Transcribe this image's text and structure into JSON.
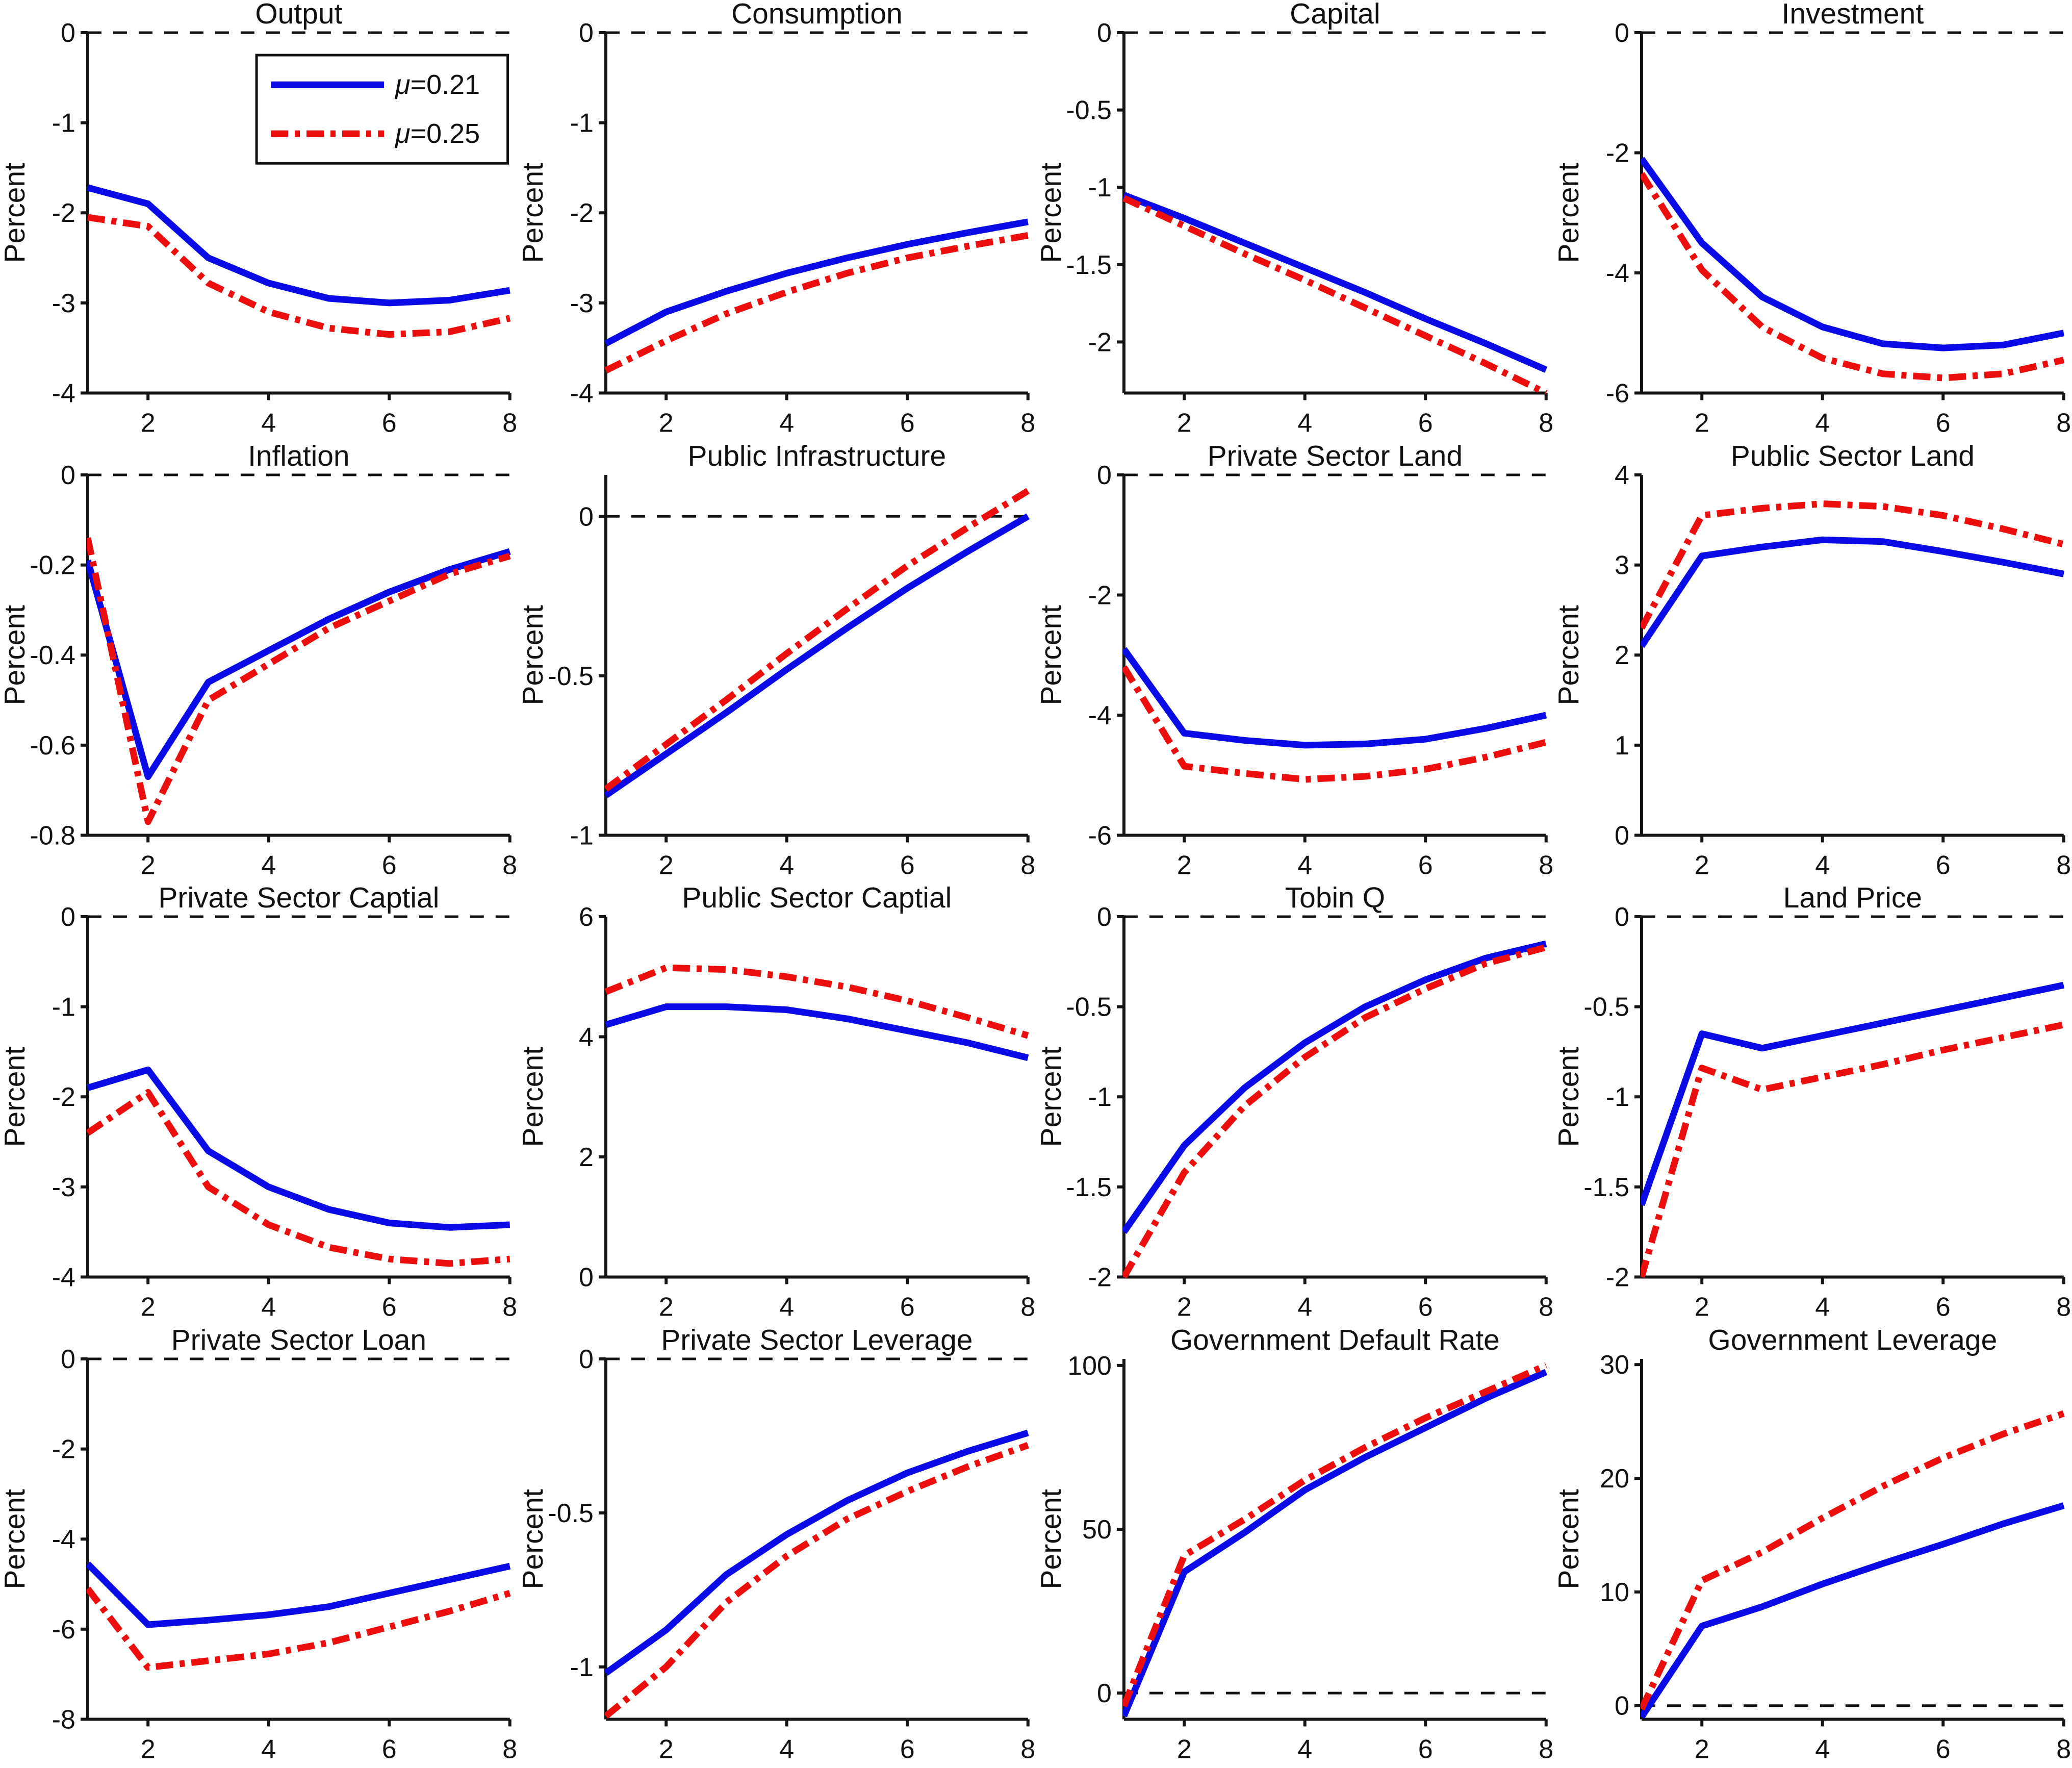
{
  "figure": {
    "ylabel": "Percent",
    "xticks": [
      2,
      4,
      6,
      8
    ],
    "x_range": [
      1,
      8
    ],
    "colors": {
      "series1": "#0b0be8",
      "series2": "#ec0d0d",
      "axis": "#151515",
      "zero_line": "#111111",
      "background": "#ffffff"
    },
    "legend": {
      "entries": [
        {
          "label": "μ=0.21",
          "color": "#0b0be8",
          "style": "solid"
        },
        {
          "label": "μ=0.25",
          "color": "#ec0d0d",
          "style": "dashdot"
        }
      ],
      "position": "upper-right-of-first-subplot"
    }
  },
  "chart_data": [
    {
      "type": "line",
      "title": "Output",
      "ylabel": "Percent",
      "x": [
        1,
        2,
        3,
        4,
        5,
        6,
        7,
        8
      ],
      "series": [
        {
          "name": "μ=0.21",
          "values": [
            -1.72,
            -1.9,
            -2.5,
            -2.78,
            -2.95,
            -3.0,
            -2.97,
            -2.86
          ]
        },
        {
          "name": "μ=0.25",
          "values": [
            -2.05,
            -2.15,
            -2.78,
            -3.1,
            -3.28,
            -3.35,
            -3.32,
            -3.17
          ]
        }
      ],
      "ylim": [
        -4,
        0
      ],
      "yticks": [
        0,
        -1,
        -2,
        -3,
        -4
      ],
      "zero_line": true,
      "show_legend": true
    },
    {
      "type": "line",
      "title": "Consumption",
      "ylabel": "Percent",
      "x": [
        1,
        2,
        3,
        4,
        5,
        6,
        7,
        8
      ],
      "series": [
        {
          "name": "μ=0.21",
          "values": [
            -3.45,
            -3.1,
            -2.87,
            -2.67,
            -2.5,
            -2.35,
            -2.22,
            -2.1
          ]
        },
        {
          "name": "μ=0.25",
          "values": [
            -3.75,
            -3.42,
            -3.12,
            -2.88,
            -2.67,
            -2.5,
            -2.37,
            -2.25
          ]
        }
      ],
      "ylim": [
        -4,
        0
      ],
      "yticks": [
        0,
        -1,
        -2,
        -3,
        -4
      ],
      "zero_line": true,
      "show_legend": false
    },
    {
      "type": "line",
      "title": "Capital",
      "ylabel": "Percent",
      "x": [
        1,
        2,
        3,
        4,
        5,
        6,
        7,
        8
      ],
      "series": [
        {
          "name": "μ=0.21",
          "values": [
            -1.05,
            -1.2,
            -1.36,
            -1.52,
            -1.68,
            -1.85,
            -2.01,
            -2.18
          ]
        },
        {
          "name": "μ=0.25",
          "values": [
            -1.07,
            -1.25,
            -1.43,
            -1.6,
            -1.78,
            -1.96,
            -2.14,
            -2.33
          ]
        }
      ],
      "ylim": [
        -2.33,
        0
      ],
      "yticks": [
        0,
        -0.5,
        -1,
        -1.5,
        -2
      ],
      "zero_line": true,
      "show_legend": false
    },
    {
      "type": "line",
      "title": "Investment",
      "ylabel": "Percent",
      "x": [
        1,
        2,
        3,
        4,
        5,
        6,
        7,
        8
      ],
      "series": [
        {
          "name": "μ=0.21",
          "values": [
            -2.1,
            -3.5,
            -4.4,
            -4.9,
            -5.18,
            -5.25,
            -5.2,
            -5.0
          ]
        },
        {
          "name": "μ=0.25",
          "values": [
            -2.35,
            -3.95,
            -4.9,
            -5.42,
            -5.68,
            -5.75,
            -5.68,
            -5.45
          ]
        }
      ],
      "ylim": [
        -6,
        0
      ],
      "yticks": [
        0,
        -2,
        -4,
        -6
      ],
      "zero_line": true,
      "show_legend": false
    },
    {
      "type": "line",
      "title": "Inflation",
      "ylabel": "Percent",
      "x": [
        1,
        2,
        3,
        4,
        5,
        6,
        7,
        8
      ],
      "series": [
        {
          "name": "μ=0.21",
          "values": [
            -0.19,
            -0.67,
            -0.46,
            -0.39,
            -0.32,
            -0.26,
            -0.21,
            -0.17
          ]
        },
        {
          "name": "μ=0.25",
          "values": [
            -0.14,
            -0.77,
            -0.5,
            -0.42,
            -0.34,
            -0.28,
            -0.22,
            -0.18
          ]
        }
      ],
      "ylim": [
        -0.8,
        0
      ],
      "yticks": [
        0,
        -0.2,
        -0.4,
        -0.6,
        -0.8
      ],
      "zero_line": true,
      "show_legend": false
    },
    {
      "type": "line",
      "title": "Public Infrastructure",
      "ylabel": "Percent",
      "x": [
        1,
        2,
        3,
        4,
        5,
        6,
        7,
        8
      ],
      "series": [
        {
          "name": "μ=0.21",
          "values": [
            -0.875,
            -0.745,
            -0.615,
            -0.48,
            -0.35,
            -0.225,
            -0.11,
            0.0
          ]
        },
        {
          "name": "μ=0.25",
          "values": [
            -0.855,
            -0.715,
            -0.575,
            -0.43,
            -0.29,
            -0.155,
            -0.035,
            0.08
          ]
        }
      ],
      "ylim": [
        -1,
        0.13
      ],
      "yticks": [
        0,
        -0.5,
        -1
      ],
      "zero_line": true,
      "show_legend": false
    },
    {
      "type": "line",
      "title": "Private Sector Land",
      "ylabel": "Percent",
      "x": [
        1,
        2,
        3,
        4,
        5,
        6,
        7,
        8
      ],
      "series": [
        {
          "name": "μ=0.21",
          "values": [
            -2.9,
            -4.3,
            -4.42,
            -4.5,
            -4.48,
            -4.4,
            -4.22,
            -4.0
          ]
        },
        {
          "name": "μ=0.25",
          "values": [
            -3.2,
            -4.85,
            -4.97,
            -5.07,
            -5.02,
            -4.9,
            -4.7,
            -4.45
          ]
        }
      ],
      "ylim": [
        -6,
        0
      ],
      "yticks": [
        0,
        -2,
        -4,
        -6
      ],
      "zero_line": true,
      "show_legend": false
    },
    {
      "type": "line",
      "title": "Public Sector Land",
      "ylabel": "Percent",
      "x": [
        1,
        2,
        3,
        4,
        5,
        6,
        7,
        8
      ],
      "series": [
        {
          "name": "μ=0.21",
          "values": [
            2.1,
            3.1,
            3.2,
            3.28,
            3.26,
            3.15,
            3.03,
            2.9
          ]
        },
        {
          "name": "μ=0.25",
          "values": [
            2.3,
            3.55,
            3.63,
            3.68,
            3.65,
            3.55,
            3.4,
            3.23
          ]
        }
      ],
      "ylim": [
        0,
        4
      ],
      "yticks": [
        0,
        1,
        2,
        3,
        4
      ],
      "zero_line": true,
      "show_legend": false
    },
    {
      "type": "line",
      "title": "Private Sector Captial",
      "ylabel": "Percent",
      "x": [
        1,
        2,
        3,
        4,
        5,
        6,
        7,
        8
      ],
      "series": [
        {
          "name": "μ=0.21",
          "values": [
            -1.9,
            -1.7,
            -2.6,
            -3.0,
            -3.25,
            -3.4,
            -3.45,
            -3.42
          ]
        },
        {
          "name": "μ=0.25",
          "values": [
            -2.4,
            -1.95,
            -3.0,
            -3.42,
            -3.67,
            -3.8,
            -3.85,
            -3.8
          ]
        }
      ],
      "ylim": [
        -4,
        0
      ],
      "yticks": [
        0,
        -1,
        -2,
        -3,
        -4
      ],
      "zero_line": true,
      "show_legend": false
    },
    {
      "type": "line",
      "title": "Public Sector Captial",
      "ylabel": "Percent",
      "x": [
        1,
        2,
        3,
        4,
        5,
        6,
        7,
        8
      ],
      "series": [
        {
          "name": "μ=0.21",
          "values": [
            4.2,
            4.5,
            4.5,
            4.45,
            4.3,
            4.1,
            3.9,
            3.65
          ]
        },
        {
          "name": "μ=0.25",
          "values": [
            4.75,
            5.15,
            5.12,
            5.0,
            4.83,
            4.6,
            4.32,
            4.02
          ]
        }
      ],
      "ylim": [
        0,
        6
      ],
      "yticks": [
        0,
        2,
        4,
        6
      ],
      "zero_line": true,
      "show_legend": false
    },
    {
      "type": "line",
      "title": "Tobin Q",
      "ylabel": "Percent",
      "x": [
        1,
        2,
        3,
        4,
        5,
        6,
        7,
        8
      ],
      "series": [
        {
          "name": "μ=0.21",
          "values": [
            -1.75,
            -1.27,
            -0.95,
            -0.7,
            -0.5,
            -0.35,
            -0.23,
            -0.15
          ]
        },
        {
          "name": "μ=0.25",
          "values": [
            -2.0,
            -1.42,
            -1.05,
            -0.78,
            -0.56,
            -0.4,
            -0.26,
            -0.17
          ]
        }
      ],
      "ylim": [
        -2,
        0
      ],
      "yticks": [
        0,
        -0.5,
        -1,
        -1.5,
        -2
      ],
      "zero_line": true,
      "show_legend": false
    },
    {
      "type": "line",
      "title": "Land Price",
      "ylabel": "Percent",
      "x": [
        1,
        2,
        3,
        4,
        5,
        6,
        7,
        8
      ],
      "series": [
        {
          "name": "μ=0.21",
          "values": [
            -1.6,
            -0.65,
            -0.73,
            -0.66,
            -0.59,
            -0.52,
            -0.45,
            -0.38
          ]
        },
        {
          "name": "μ=0.25",
          "values": [
            -2.0,
            -0.84,
            -0.96,
            -0.89,
            -0.82,
            -0.74,
            -0.67,
            -0.6
          ]
        }
      ],
      "ylim": [
        -2,
        0
      ],
      "yticks": [
        0,
        -0.5,
        -1,
        -1.5,
        -2
      ],
      "zero_line": true,
      "show_legend": false
    },
    {
      "type": "line",
      "title": "Private Sector Loan",
      "ylabel": "Percent",
      "x": [
        1,
        2,
        3,
        4,
        5,
        6,
        7,
        8
      ],
      "series": [
        {
          "name": "μ=0.21",
          "values": [
            -4.55,
            -5.9,
            -5.8,
            -5.68,
            -5.5,
            -5.2,
            -4.9,
            -4.6
          ]
        },
        {
          "name": "μ=0.25",
          "values": [
            -5.1,
            -6.85,
            -6.7,
            -6.55,
            -6.3,
            -5.95,
            -5.6,
            -5.2
          ]
        }
      ],
      "ylim": [
        -8,
        0
      ],
      "yticks": [
        0,
        -2,
        -4,
        -6,
        -8
      ],
      "zero_line": true,
      "show_legend": false
    },
    {
      "type": "line",
      "title": "Private Sector Leverage",
      "ylabel": "Percent",
      "x": [
        1,
        2,
        3,
        4,
        5,
        6,
        7,
        8
      ],
      "series": [
        {
          "name": "μ=0.21",
          "values": [
            -1.02,
            -0.88,
            -0.7,
            -0.57,
            -0.46,
            -0.37,
            -0.3,
            -0.24
          ]
        },
        {
          "name": "μ=0.25",
          "values": [
            -1.16,
            -1.0,
            -0.79,
            -0.64,
            -0.52,
            -0.43,
            -0.35,
            -0.28
          ]
        }
      ],
      "ylim": [
        -1.17,
        0
      ],
      "yticks": [
        0,
        -0.5,
        -1
      ],
      "zero_line": true,
      "show_legend": false
    },
    {
      "type": "line",
      "title": "Government Default Rate",
      "ylabel": "Percent",
      "x": [
        1,
        2,
        3,
        4,
        5,
        6,
        7,
        8
      ],
      "series": [
        {
          "name": "μ=0.21",
          "values": [
            -7,
            37,
            49,
            62,
            72,
            81,
            90,
            98
          ]
        },
        {
          "name": "μ=0.25",
          "values": [
            -4,
            42,
            53,
            65,
            75,
            84,
            92,
            100
          ]
        }
      ],
      "ylim": [
        -8,
        102
      ],
      "yticks": [
        0,
        50,
        100
      ],
      "zero_line": true,
      "show_legend": false
    },
    {
      "type": "line",
      "title": "Government Leverage",
      "ylabel": "Percent",
      "x": [
        1,
        2,
        3,
        4,
        5,
        6,
        7,
        8
      ],
      "series": [
        {
          "name": "μ=0.21",
          "values": [
            -1.0,
            7.0,
            8.7,
            10.7,
            12.5,
            14.2,
            16.0,
            17.6
          ]
        },
        {
          "name": "μ=0.25",
          "values": [
            -0.3,
            11.0,
            13.5,
            16.5,
            19.3,
            21.8,
            23.9,
            25.7
          ]
        }
      ],
      "ylim": [
        -1.2,
        30.5
      ],
      "yticks": [
        0,
        10,
        20,
        30
      ],
      "zero_line": true,
      "show_legend": false
    }
  ]
}
